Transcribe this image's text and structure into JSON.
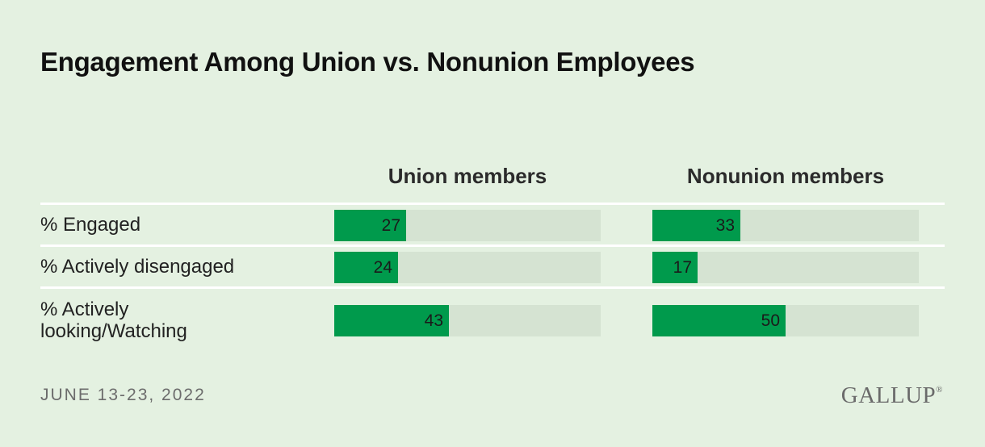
{
  "title": "Engagement Among Union vs. Nonunion Employees",
  "footer": {
    "date": "JUNE 13-23, 2022",
    "logo": "GALLUP"
  },
  "colors": {
    "background": "#e4f1e1",
    "bar": "#009a4c",
    "track": "#d5e3d2"
  },
  "chart_data": {
    "type": "bar",
    "orientation": "horizontal",
    "title": "Engagement Among Union vs. Nonunion Employees",
    "xlim": [
      0,
      100
    ],
    "categories": [
      "% Engaged",
      "% Actively disengaged",
      "% Actively looking/Watching"
    ],
    "category_lines": [
      [
        "% Engaged"
      ],
      [
        "% Actively disengaged"
      ],
      [
        "% Actively",
        "looking/Watching"
      ]
    ],
    "series": [
      {
        "name": "Union members",
        "values": [
          27,
          24,
          43
        ]
      },
      {
        "name": "Nonunion members",
        "values": [
          33,
          17,
          50
        ]
      }
    ]
  }
}
